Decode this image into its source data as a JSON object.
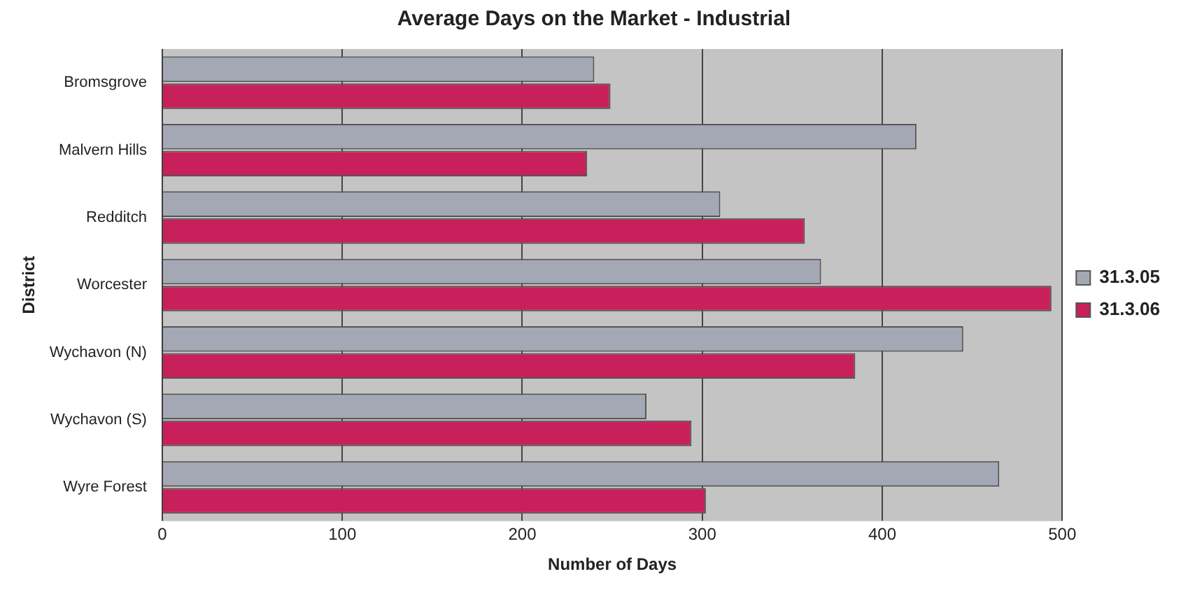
{
  "chart_data": {
    "type": "bar",
    "orientation": "horizontal",
    "title": "Average Days on the Market - Industrial",
    "xlabel": "Number of Days",
    "ylabel": "District",
    "categories": [
      "Bromsgrove",
      "Malvern Hills",
      "Redditch",
      "Worcester",
      "Wychavon (N)",
      "Wychavon (S)",
      "Wyre Forest"
    ],
    "series": [
      {
        "name": "31.3.05",
        "color": "#a4a8b4",
        "values": [
          240,
          419,
          310,
          366,
          445,
          269,
          465
        ]
      },
      {
        "name": "31.3.06",
        "color": "#c8205a",
        "values": [
          249,
          236,
          357,
          494,
          385,
          294,
          302
        ]
      }
    ],
    "xlim": [
      0,
      500
    ],
    "xticks": [
      0,
      100,
      200,
      300,
      400,
      500
    ],
    "grid": "x",
    "legend": "right"
  }
}
